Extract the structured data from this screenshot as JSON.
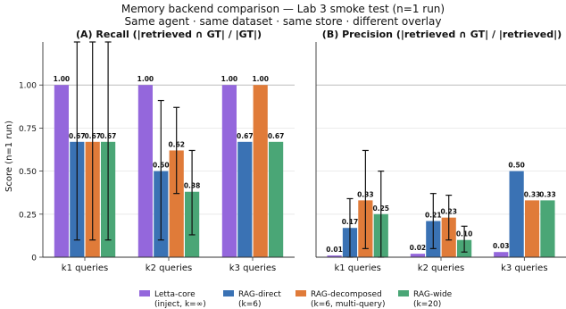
{
  "figure": {
    "title": "Memory backend comparison — Lab 3 smoke test (n=1 run)",
    "subtitle": "Same agent · same dataset · same store · different overlay"
  },
  "legend": {
    "placement": "bottom-center",
    "items": [
      {
        "label1": "Letta-core",
        "label2": "(inject, k=∞)",
        "color": "#9467dc"
      },
      {
        "label1": "RAG-direct",
        "label2": "(k=6)",
        "color": "#3a72b4"
      },
      {
        "label1": "RAG-decomposed",
        "label2": "(k=6, multi-query)",
        "color": "#e07b39"
      },
      {
        "label1": "RAG-wide",
        "label2": "(k=20)",
        "color": "#4aa676"
      }
    ]
  },
  "chart_data": [
    {
      "type": "bar",
      "title": "(A) Recall  (|retrieved ∩ GT| / |GT|)",
      "ylabel": "Score (n=1 run)",
      "xlabel": "",
      "ylim": [
        0,
        1.25
      ],
      "yticks": [
        "0",
        "0.25",
        "0.50",
        "0.75",
        "1.00"
      ],
      "grid": true,
      "reference_line": 1.0,
      "categories": [
        "k1 queries",
        "k2 queries",
        "k3 queries"
      ],
      "series": [
        {
          "name": "Letta-core",
          "values": [
            1.0,
            1.0,
            1.0
          ],
          "labels": [
            "1.00",
            "1.00",
            "1.00"
          ],
          "err_low": [
            null,
            null,
            null
          ],
          "err_high": [
            null,
            null,
            null
          ]
        },
        {
          "name": "RAG-direct",
          "values": [
            0.67,
            0.5,
            0.67
          ],
          "labels": [
            "0.67",
            "0.50",
            "0.67"
          ],
          "err_low": [
            0.1,
            0.1,
            null
          ],
          "err_high": [
            1.25,
            0.91,
            null
          ]
        },
        {
          "name": "RAG-decomposed",
          "values": [
            0.67,
            0.62,
            1.0
          ],
          "labels": [
            "0.67",
            "0.62",
            "1.00"
          ],
          "err_low": [
            0.1,
            0.37,
            null
          ],
          "err_high": [
            1.25,
            0.87,
            null
          ]
        },
        {
          "name": "RAG-wide",
          "values": [
            0.67,
            0.38,
            0.67
          ],
          "labels": [
            "0.67",
            "0.38",
            "0.67"
          ],
          "err_low": [
            0.1,
            0.13,
            null
          ],
          "err_high": [
            1.25,
            0.62,
            null
          ]
        }
      ]
    },
    {
      "type": "bar",
      "title": "(B) Precision  (|retrieved ∩ GT| / |retrieved|)",
      "ylabel": "",
      "xlabel": "",
      "ylim": [
        0,
        1.25
      ],
      "grid": true,
      "reference_line": 1.0,
      "categories": [
        "k1 queries",
        "k2 queries",
        "k3 queries"
      ],
      "series": [
        {
          "name": "Letta-core",
          "values": [
            0.01,
            0.02,
            0.03
          ],
          "labels": [
            "0.01",
            "0.02",
            "0.03"
          ],
          "err_low": [
            null,
            null,
            null
          ],
          "err_high": [
            null,
            null,
            null
          ]
        },
        {
          "name": "RAG-direct",
          "values": [
            0.17,
            0.21,
            0.5
          ],
          "labels": [
            "0.17",
            "0.21",
            "0.50"
          ],
          "err_low": [
            0.0,
            0.05,
            null
          ],
          "err_high": [
            0.34,
            0.37,
            null
          ]
        },
        {
          "name": "RAG-decomposed",
          "values": [
            0.33,
            0.23,
            0.33
          ],
          "labels": [
            "0.33",
            "0.23",
            "0.33"
          ],
          "err_low": [
            0.05,
            0.1,
            null
          ],
          "err_high": [
            0.62,
            0.36,
            null
          ]
        },
        {
          "name": "RAG-wide",
          "values": [
            0.25,
            0.1,
            0.33
          ],
          "labels": [
            "0.25",
            "0.10",
            "0.33"
          ],
          "err_low": [
            0.0,
            0.03,
            null
          ],
          "err_high": [
            0.5,
            0.18,
            null
          ]
        }
      ]
    }
  ]
}
